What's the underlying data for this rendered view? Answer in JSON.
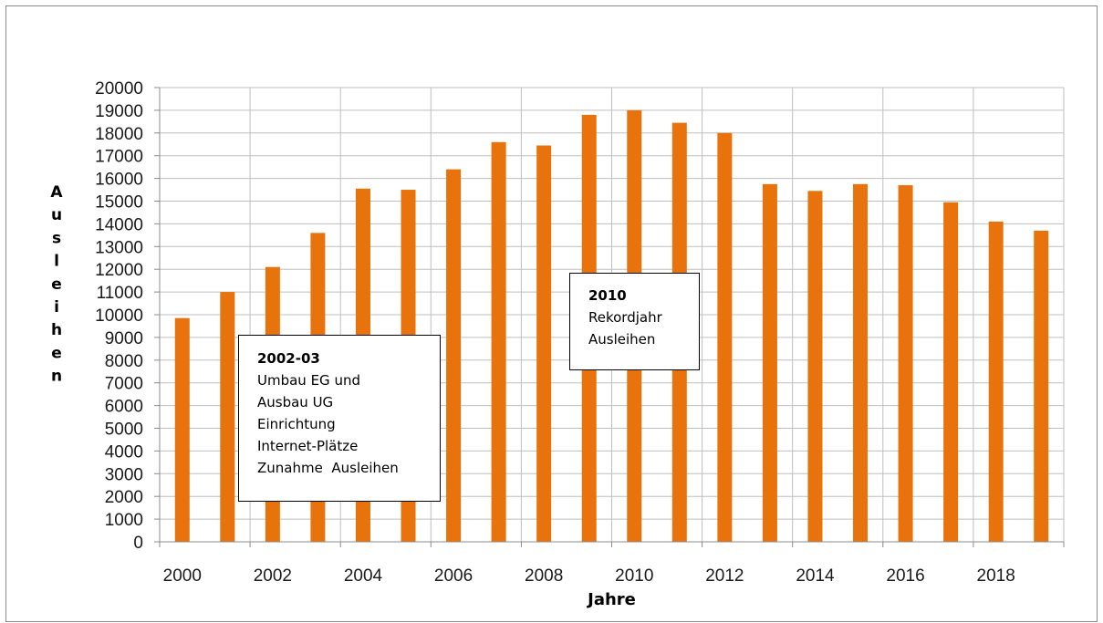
{
  "chart_data": {
    "type": "bar",
    "categories": [
      "2000",
      "2001",
      "2002",
      "2003",
      "2004",
      "2005",
      "2006",
      "2007",
      "2008",
      "2009",
      "2010",
      "2011",
      "2012",
      "2013",
      "2014",
      "2015",
      "2016",
      "2017",
      "2018",
      "2019"
    ],
    "values": [
      9850,
      11000,
      12100,
      13600,
      15550,
      15500,
      16400,
      17600,
      17450,
      18800,
      19000,
      18450,
      18000,
      15750,
      15450,
      15750,
      15700,
      14950,
      14100,
      13700
    ],
    "x_tick_labels": [
      "2000",
      "2002",
      "2004",
      "2006",
      "2008",
      "2010",
      "2012",
      "2014",
      "2016",
      "2018"
    ],
    "y_tick_labels": [
      "0",
      "1000",
      "2000",
      "3000",
      "4000",
      "5000",
      "6000",
      "7000",
      "8000",
      "9000",
      "10000",
      "11000",
      "12000",
      "13000",
      "14000",
      "15000",
      "16000",
      "17000",
      "18000",
      "19000",
      "20000"
    ],
    "ylim": [
      0,
      20000
    ],
    "xlabel": "Jahre",
    "ylabel": "Ausleihen",
    "title": "",
    "grid": true,
    "bar_color": "#e8720c",
    "annotations": [
      {
        "title": "2002-03",
        "lines": [
          "Umbau EG und",
          "Ausbau UG",
          "Einrichtung",
          "Internet-Plätze",
          "Zunahme  Ausleihen"
        ]
      },
      {
        "title": "2010",
        "lines": [
          "Rekordjahr",
          "Ausleihen"
        ]
      }
    ]
  }
}
